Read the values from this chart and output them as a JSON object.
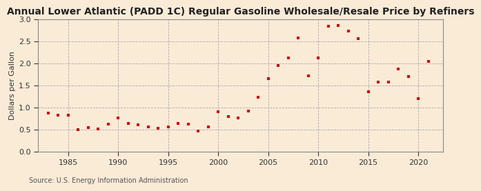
{
  "title": "Annual Lower Atlantic (PADD 1C) Regular Gasoline Wholesale/Resale Price by Refiners",
  "ylabel": "Dollars per Gallon",
  "source": "Source: U.S. Energy Information Administration",
  "background_color": "#faebd7",
  "plot_bg_color": "#faebd7",
  "marker_color": "#cc0000",
  "years": [
    1983,
    1984,
    1985,
    1986,
    1987,
    1988,
    1989,
    1990,
    1991,
    1992,
    1993,
    1994,
    1995,
    1996,
    1997,
    1998,
    1999,
    2000,
    2001,
    2002,
    2003,
    2004,
    2005,
    2006,
    2007,
    2008,
    2009,
    2010,
    2011,
    2012,
    2013,
    2014,
    2015,
    2016,
    2017,
    2018,
    2019,
    2020,
    2021
  ],
  "values": [
    0.88,
    0.83,
    0.83,
    0.5,
    0.55,
    0.52,
    0.63,
    0.77,
    0.65,
    0.61,
    0.57,
    0.54,
    0.56,
    0.65,
    0.63,
    0.47,
    0.57,
    0.91,
    0.8,
    0.77,
    0.93,
    1.23,
    1.65,
    1.95,
    2.12,
    2.58,
    1.72,
    2.12,
    2.84,
    2.86,
    2.73,
    2.56,
    1.36,
    1.58,
    1.58,
    1.87,
    1.7,
    1.21,
    2.05
  ],
  "xlim": [
    1982,
    2022.5
  ],
  "ylim": [
    0.0,
    3.0
  ],
  "yticks": [
    0.0,
    0.5,
    1.0,
    1.5,
    2.0,
    2.5,
    3.0
  ],
  "xticks": [
    1985,
    1990,
    1995,
    2000,
    2005,
    2010,
    2015,
    2020
  ],
  "grid_color": "#aaaaaa",
  "spine_color": "#888888",
  "title_fontsize": 10,
  "label_fontsize": 8,
  "tick_fontsize": 8,
  "source_fontsize": 7
}
